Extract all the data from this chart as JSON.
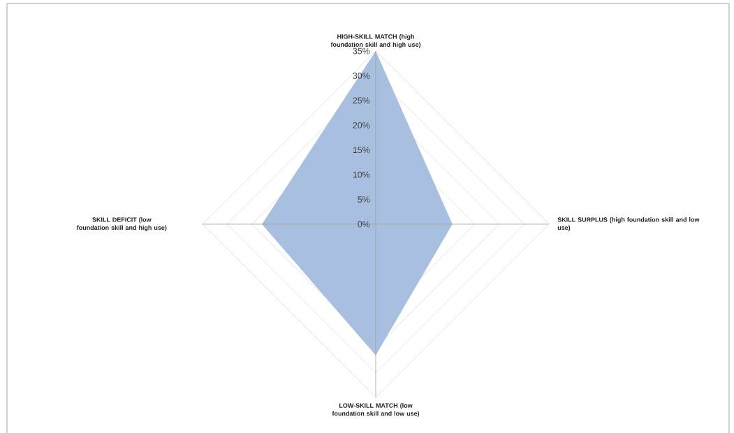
{
  "chart_data": {
    "type": "radar",
    "categories": [
      "HIGH-SKILL MATCH (high foundation skill and high use)",
      "SKILL SURPLUS (high foundation skill and low use)",
      "LOW-SKILL MATCH (low foundation skill and low use)",
      "SKILL DEFICIT (low foundation skill and high use)"
    ],
    "series": [
      {
        "color": "#a8bfe0",
        "values": [
          35,
          15.5,
          26.5,
          23
        ]
      }
    ],
    "ylim": [
      0,
      35
    ],
    "yticks": [
      {
        "value": 0,
        "label": "0%"
      },
      {
        "value": 5,
        "label": "5%"
      },
      {
        "value": 10,
        "label": "10%"
      },
      {
        "value": 15,
        "label": "15%"
      },
      {
        "value": 20,
        "label": "20%"
      },
      {
        "value": 25,
        "label": "25%"
      },
      {
        "value": 30,
        "label": "30%"
      },
      {
        "value": 35,
        "label": "35%"
      }
    ],
    "grid": true
  }
}
